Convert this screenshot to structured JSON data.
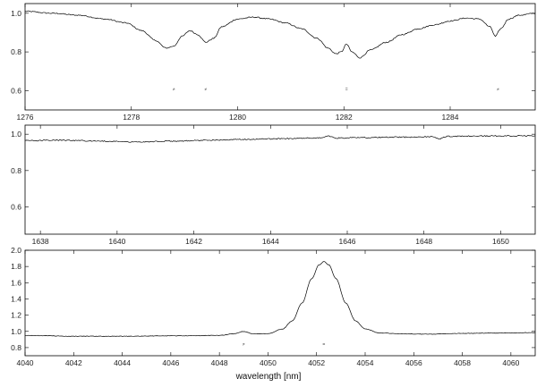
{
  "chart_data": [
    {
      "type": "line",
      "xlim": [
        1276.0,
        1285.6
      ],
      "ylim": [
        0.5,
        1.05
      ],
      "xticks": [
        1276,
        1278,
        1280,
        1282,
        1284
      ],
      "yticks": [
        0.6,
        0.8,
        1.0
      ],
      "xtick_labels": [
        "1276",
        "1278",
        "1280",
        "1282",
        "1284"
      ],
      "ytick_labels": [
        "0.6",
        "0.8",
        "1.0"
      ],
      "grid": false,
      "series": [
        {
          "x": [
            1276.0,
            1276.5,
            1277.0,
            1277.5,
            1277.9,
            1278.2,
            1278.45,
            1278.65,
            1278.8,
            1278.95,
            1279.1,
            1279.25,
            1279.4,
            1279.55,
            1279.7,
            1280.0,
            1280.3,
            1280.6,
            1280.9,
            1281.2,
            1281.5,
            1281.7,
            1281.85,
            1281.95,
            1282.05,
            1282.15,
            1282.3,
            1282.5,
            1282.8,
            1283.1,
            1283.4,
            1283.7,
            1284.0,
            1284.3,
            1284.55,
            1284.75,
            1284.85,
            1284.95,
            1285.1,
            1285.3,
            1285.6
          ],
          "y": [
            1.01,
            1.0,
            0.99,
            0.97,
            0.95,
            0.91,
            0.86,
            0.82,
            0.83,
            0.88,
            0.91,
            0.89,
            0.85,
            0.87,
            0.93,
            0.97,
            0.98,
            0.97,
            0.95,
            0.92,
            0.87,
            0.82,
            0.79,
            0.8,
            0.84,
            0.8,
            0.77,
            0.81,
            0.85,
            0.89,
            0.92,
            0.94,
            0.96,
            0.975,
            0.97,
            0.93,
            0.88,
            0.92,
            0.97,
            0.99,
            1.0
          ]
        }
      ],
      "marks": [
        {
          "x": 1278.8,
          "y": 0.6,
          "label": "≠"
        },
        {
          "x": 1279.4,
          "y": 0.6,
          "label": "≠"
        },
        {
          "x": 1282.05,
          "y": 0.6,
          "label": "="
        },
        {
          "x": 1284.9,
          "y": 0.6,
          "label": "≠"
        }
      ]
    },
    {
      "type": "line",
      "xlim": [
        1637.6,
        1650.9
      ],
      "ylim": [
        0.45,
        1.05
      ],
      "xticks": [
        1638,
        1640,
        1642,
        1644,
        1646,
        1648,
        1650
      ],
      "yticks": [
        0.6,
        0.8,
        1.0
      ],
      "xtick_labels": [
        "1638",
        "1640",
        "1642",
        "1644",
        "1646",
        "1648",
        "1650"
      ],
      "ytick_labels": [
        "0.6",
        "0.8",
        "1.0"
      ],
      "grid": false,
      "series": [
        {
          "x": [
            1637.6,
            1638.5,
            1639.5,
            1640.5,
            1641.5,
            1642.5,
            1643.5,
            1644.5,
            1645.3,
            1645.5,
            1645.7,
            1646.5,
            1647.5,
            1648.2,
            1648.4,
            1648.6,
            1649.5,
            1650.9
          ],
          "y": [
            0.965,
            0.967,
            0.962,
            0.958,
            0.962,
            0.968,
            0.972,
            0.976,
            0.98,
            0.99,
            0.979,
            0.982,
            0.984,
            0.986,
            0.975,
            0.988,
            0.99,
            0.992
          ]
        }
      ],
      "marks": []
    },
    {
      "type": "line",
      "xlim": [
        4040.0,
        4061.0
      ],
      "ylim": [
        0.7,
        2.0
      ],
      "xticks": [
        4040,
        4042,
        4044,
        4046,
        4048,
        4050,
        4052,
        4054,
        4056,
        4058,
        4060
      ],
      "yticks": [
        0.8,
        1.0,
        1.2,
        1.4,
        1.6,
        1.8,
        2.0
      ],
      "xtick_labels": [
        "4040",
        "4042",
        "4044",
        "4046",
        "4048",
        "4050",
        "4052",
        "4054",
        "4056",
        "4058",
        "4060"
      ],
      "ytick_labels": [
        "0.8",
        "1.0",
        "1.2",
        "1.4",
        "1.6",
        "1.8",
        "2.0"
      ],
      "grid": false,
      "xlabel": "wavelength [nm]",
      "series": [
        {
          "x": [
            4040.0,
            4042.0,
            4044.0,
            4046.0,
            4048.0,
            4048.6,
            4049.0,
            4049.4,
            4050.0,
            4050.6,
            4051.0,
            4051.4,
            4051.8,
            4052.1,
            4052.3,
            4052.5,
            4052.8,
            4053.2,
            4053.6,
            4054.0,
            4054.6,
            4055.5,
            4056.5,
            4058.0,
            4060.0,
            4061.0
          ],
          "y": [
            0.95,
            0.94,
            0.94,
            0.945,
            0.95,
            0.97,
            1.0,
            0.97,
            0.97,
            1.03,
            1.13,
            1.35,
            1.65,
            1.82,
            1.86,
            1.82,
            1.65,
            1.35,
            1.13,
            1.03,
            0.98,
            0.97,
            0.965,
            0.975,
            0.98,
            0.985
          ]
        }
      ],
      "marks": [
        {
          "x": 4049.0,
          "y": 0.82,
          "label": "≠"
        },
        {
          "x": 4052.3,
          "y": 0.82,
          "label": "="
        }
      ]
    }
  ]
}
